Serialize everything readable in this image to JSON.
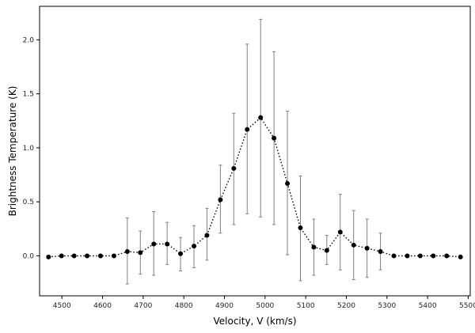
{
  "chart_data": {
    "type": "scatter",
    "title": "",
    "xlabel": "Velocity, V (km/s)",
    "ylabel": "Brightness Temperature (K)",
    "xlim": [
      4445,
      5505
    ],
    "ylim": [
      -0.37,
      2.31
    ],
    "x_ticks": [
      4500,
      4600,
      4700,
      4800,
      4900,
      5000,
      5100,
      5200,
      5300,
      5400,
      5500
    ],
    "x_tick_labels": [
      "4500",
      "4600",
      "4700",
      "4800",
      "4900",
      "5000",
      "5100",
      "5200",
      "5300",
      "5400",
      "5500"
    ],
    "y_ticks": [
      0.0,
      0.5,
      1.0,
      1.5,
      2.0
    ],
    "y_tick_labels": [
      "0.0",
      "0.5",
      "1.0",
      "1.5",
      "2.0"
    ],
    "grid": false,
    "legend": false,
    "line_style": "dotted",
    "marker_color": "#000000",
    "errorbar_color": "#808080",
    "series": [
      {
        "x": [
          4467,
          4499,
          4530,
          4562,
          4595,
          4628,
          4661,
          4693,
          4726,
          4759,
          4792,
          4825,
          4857,
          4890,
          4923,
          4956,
          4989,
          5022,
          5055,
          5087,
          5120,
          5152,
          5185,
          5218,
          5251,
          5284,
          5317,
          5350,
          5382,
          5414,
          5447,
          5481
        ],
        "y": [
          -0.01,
          0.0,
          0.0,
          0.0,
          0.0,
          0.0,
          0.04,
          0.03,
          0.11,
          0.11,
          0.02,
          0.09,
          0.19,
          0.52,
          0.81,
          1.17,
          1.28,
          1.09,
          0.67,
          0.26,
          0.08,
          0.05,
          0.22,
          0.1,
          0.07,
          0.04,
          0.0,
          0.0,
          0.0,
          0.0,
          0.0,
          -0.01
        ],
        "err_low": [
          null,
          null,
          null,
          null,
          null,
          null,
          0.3,
          0.2,
          0.29,
          0.19,
          0.16,
          0.2,
          0.23,
          0.31,
          0.52,
          0.78,
          0.92,
          0.8,
          0.66,
          0.49,
          0.26,
          0.13,
          0.35,
          0.32,
          0.27,
          0.17,
          null,
          null,
          null,
          null,
          null,
          null
        ],
        "err_high": [
          null,
          null,
          null,
          null,
          null,
          null,
          0.31,
          0.2,
          0.3,
          0.2,
          0.15,
          0.19,
          0.25,
          0.32,
          0.51,
          0.79,
          0.91,
          0.8,
          0.67,
          0.48,
          0.26,
          0.14,
          0.35,
          0.32,
          0.27,
          0.17,
          null,
          null,
          null,
          null,
          null,
          null
        ]
      }
    ]
  }
}
